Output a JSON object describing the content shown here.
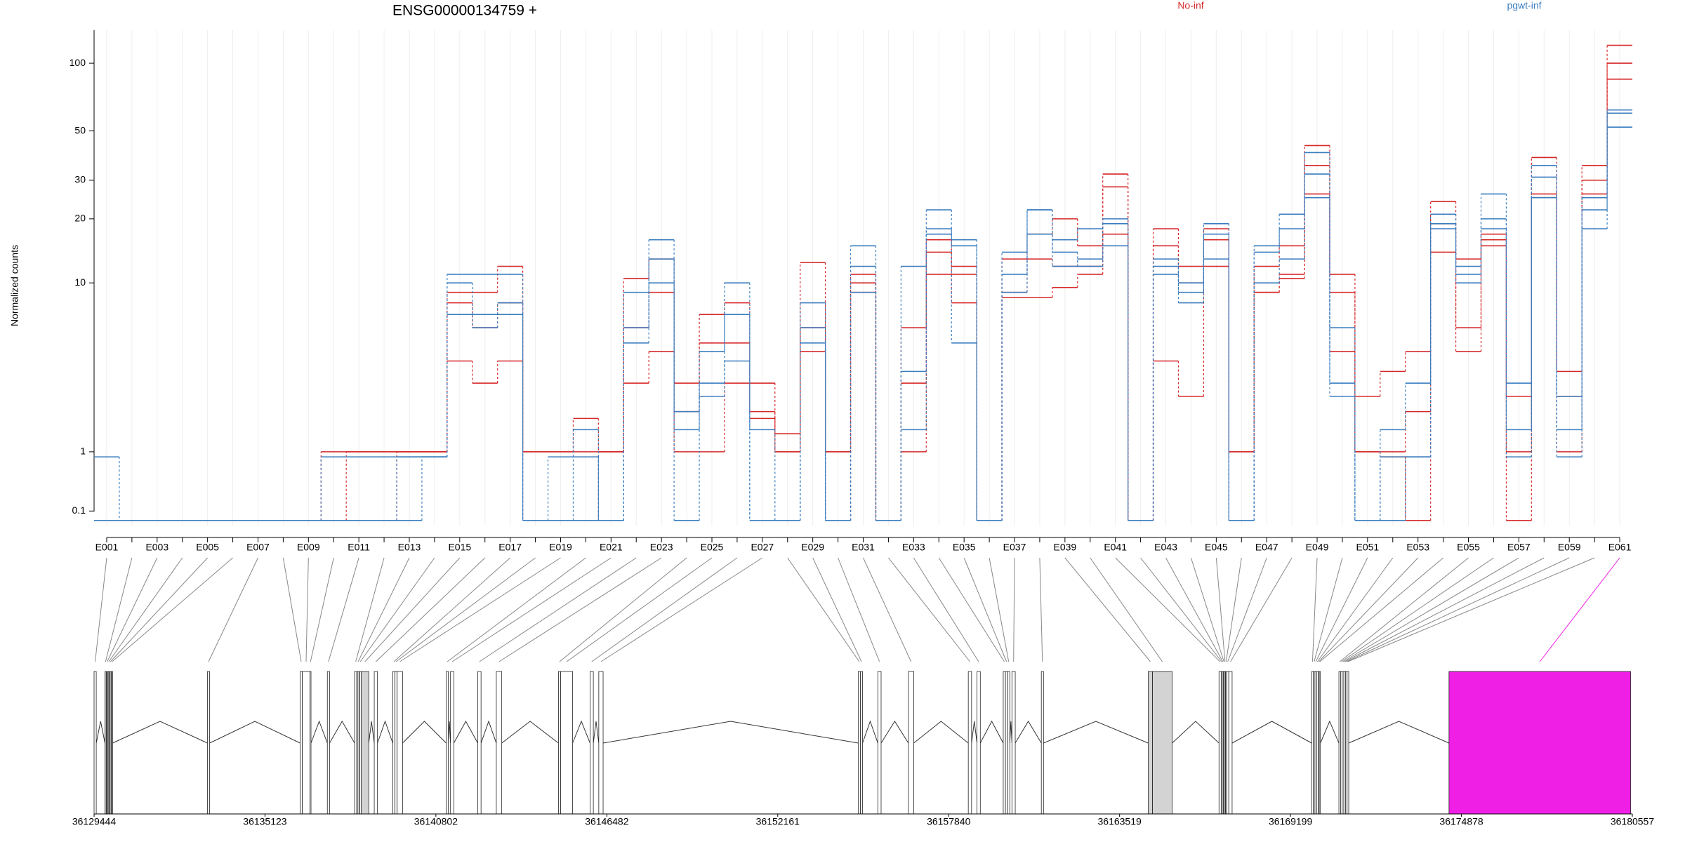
{
  "chart_data": [
    {
      "type": "exon_steps",
      "title": "ENSG00000134759 +",
      "y_label": "Normalized counts",
      "yscale": "log1p",
      "ylim": [
        -0.05,
        140
      ],
      "yticks": [
        0.1,
        1,
        10,
        20,
        30,
        50,
        100
      ],
      "categories": [
        "E001",
        null,
        "E003",
        null,
        "E005",
        null,
        "E007",
        null,
        "E009",
        null,
        "E011",
        null,
        "E013",
        null,
        "E015",
        null,
        "E017",
        null,
        "E019",
        null,
        "E021",
        null,
        "E023",
        null,
        "E025",
        null,
        "E027",
        null,
        "E029",
        null,
        "E031",
        null,
        "E033",
        null,
        "E035",
        null,
        "E037",
        null,
        "E039",
        null,
        "E041",
        null,
        "E043",
        null,
        "E045",
        null,
        "E047",
        null,
        "E049",
        null,
        "E051",
        null,
        "E053",
        null,
        "E055",
        null,
        "E057",
        null,
        "E059",
        null,
        "E061"
      ],
      "series": [
        {
          "name": "No-inf",
          "color": "#d62728",
          "samples": [
            [
              0,
              0,
              0,
              0,
              0,
              0,
              0,
              0,
              0,
              1,
              1,
              1,
              1,
              1,
              9,
              9,
              12,
              1,
              1,
              1.8,
              1,
              10.5,
              13,
              3,
              7,
              8,
              3,
              1,
              12.5,
              1,
              11,
              0,
              6,
              16,
              12,
              0,
              13,
              17,
              20,
              15,
              32,
              0,
              18,
              12,
              18,
              1,
              12,
              15,
              43,
              11,
              2.5,
              3.5,
              4.5,
              24,
              13,
              17,
              2.5,
              38,
              3.5,
              35,
              120
            ],
            [
              0,
              0,
              0,
              0,
              0,
              0,
              0,
              0,
              0,
              0,
              1,
              1,
              1,
              1,
              8,
              6,
              8,
              1,
              1,
              1,
              1,
              6,
              9,
              2,
              5,
              5,
              2,
              1.4,
              6,
              1,
              10,
              0,
              3,
              11,
              8,
              0,
              9,
              13,
              12,
              12,
              28,
              0,
              15,
              10,
              16,
              1,
              9,
              11,
              35,
              9,
              1,
              1,
              2,
              19,
              6,
              16,
              1,
              26,
              2.5,
              30,
              100
            ],
            [
              0,
              0,
              0,
              0,
              0,
              0,
              0,
              0,
              0,
              0,
              0,
              0,
              1,
              1,
              4,
              3,
              4,
              0,
              0,
              0,
              1,
              3,
              4.5,
              1,
              1,
              3,
              1.8,
              1,
              4.5,
              0,
              9,
              0,
              1,
              14,
              11,
              0,
              8.5,
              8.5,
              9.5,
              11,
              17,
              0,
              4,
              2.5,
              12,
              0,
              9,
              10.5,
              26,
              4.5,
              1,
              0.9,
              0,
              14,
              4.5,
              15,
              0,
              25,
              1,
              26,
              85
            ]
          ]
        },
        {
          "name": "pgwt-inf",
          "color": "#3a7dbf",
          "samples": [
            [
              0.9,
              0,
              0,
              0,
              0,
              0,
              0,
              0,
              0,
              0.9,
              0.9,
              0.9,
              0.9,
              0.9,
              11,
              11,
              11,
              0,
              0.9,
              1.5,
              0,
              9,
              16,
              1.5,
              4.5,
              10,
              1.5,
              0,
              8,
              0,
              15,
              0,
              12,
              22,
              16,
              0,
              14,
              22,
              16,
              18,
              20,
              0,
              13,
              8,
              19,
              0,
              15,
              21,
              40,
              6,
              0,
              1.5,
              3,
              21,
              12,
              26,
              3,
              35,
              2.5,
              22,
              62
            ],
            [
              0,
              0,
              0,
              0,
              0,
              0,
              0,
              0,
              0,
              0,
              0,
              0,
              0.9,
              0.9,
              10,
              7,
              8,
              0,
              0,
              0.9,
              0,
              5,
              10,
              0,
              3,
              7,
              0,
              0,
              6,
              0,
              12,
              0,
              3.5,
              18,
              5,
              0,
              11,
              17,
              12,
              13,
              19,
              0,
              11,
              9,
              17,
              0,
              14,
              18,
              32,
              3,
              0,
              0.9,
              0.9,
              19,
              11,
              20,
              1.5,
              31,
              1.5,
              18,
              60
            ],
            [
              0,
              0,
              0,
              0,
              0,
              0,
              0,
              0,
              0,
              0,
              0,
              0,
              0,
              0.9,
              7,
              6,
              7,
              0,
              0,
              0,
              0,
              6,
              13,
              2,
              2.5,
              4,
              0,
              0,
              5,
              0,
              9,
              0,
              1.5,
              17,
              15,
              0,
              9,
              22,
              14,
              12,
              15,
              0,
              12,
              10,
              13,
              0,
              10,
              13,
              25,
              2.5,
              0,
              0,
              0.9,
              18,
              10,
              18,
              0.9,
              25,
              0.9,
              25,
              52
            ]
          ]
        }
      ]
    },
    {
      "type": "gene_model",
      "xlim": [
        36129444,
        36180557
      ],
      "xticks": [
        36129444,
        36135123,
        36140802,
        36146482,
        36152161,
        36157840,
        36163519,
        36169199,
        36174878,
        36180557
      ],
      "starts": [
        36129444,
        36129806,
        36129861,
        36129915,
        36129969,
        36130024,
        36133211,
        36136290,
        36136362,
        36136616,
        36137195,
        36138101,
        36138191,
        36138263,
        36138318,
        36138753,
        36139368,
        36139441,
        36139513,
        36141143,
        36141288,
        36142193,
        36142809,
        36144874,
        36144946,
        36145924,
        36146214,
        36154834,
        36154907,
        36155486,
        36156501,
        36158492,
        36158782,
        36159653,
        36159726,
        36159798,
        36159943,
        36160919,
        36164469,
        36164614,
        36166823,
        36166895,
        36166932,
        36166968,
        36167004,
        36167040,
        36167077,
        36167149,
        36169902,
        36169956,
        36170010,
        36170065,
        36170119,
        36170155,
        36170807,
        36170862,
        36170916,
        36170970,
        36171025,
        36171079,
        36174465
      ],
      "ends": [
        36129516,
        36129842,
        36129897,
        36129951,
        36130005,
        36130060,
        36133283,
        36136362,
        36136616,
        36136652,
        36137268,
        36138173,
        36138245,
        36138318,
        36138571,
        36138861,
        36139441,
        36139513,
        36139694,
        36141216,
        36141397,
        36142302,
        36142990,
        36144946,
        36145345,
        36146033,
        36146358,
        36154907,
        36154979,
        36155595,
        36156681,
        36158601,
        36158891,
        36159726,
        36159798,
        36159871,
        36160052,
        36160992,
        36164614,
        36165266,
        36166895,
        36166932,
        36166968,
        36167004,
        36167040,
        36167077,
        36167149,
        36167258,
        36169956,
        36170010,
        36170065,
        36170119,
        36170155,
        36170192,
        36170862,
        36170916,
        36170970,
        36171025,
        36171079,
        36171133,
        36180500
      ],
      "colors": [
        "#ffffff",
        "#ffffff",
        "#ffffff",
        "#ffffff",
        "#ffffff",
        "#ffffff",
        "#ffffff",
        "#ffffff",
        "#ffffff",
        "#ffffff",
        "#ffffff",
        "#ffffff",
        "#ffffff",
        "#ffffff",
        "#d3d3d3",
        "#ffffff",
        "#ffffff",
        "#ffffff",
        "#ffffff",
        "#ffffff",
        "#ffffff",
        "#ffffff",
        "#ffffff",
        "#ffffff",
        "#ffffff",
        "#ffffff",
        "#ffffff",
        "#ffffff",
        "#ffffff",
        "#ffffff",
        "#ffffff",
        "#ffffff",
        "#ffffff",
        "#ffffff",
        "#ffffff",
        "#ffffff",
        "#ffffff",
        "#ffffff",
        "#d3d3d3",
        "#d3d3d3",
        "#ffffff",
        "#ffffff",
        "#ffffff",
        "#ffffff",
        "#ffffff",
        "#ffffff",
        "#ffffff",
        "#ffffff",
        "#ffffff",
        "#ffffff",
        "#ffffff",
        "#ffffff",
        "#ffffff",
        "#ffffff",
        "#ffffff",
        "#ffffff",
        "#ffffff",
        "#ffffff",
        "#ffffff",
        "#ffffff",
        "#f01fe6"
      ]
    }
  ]
}
